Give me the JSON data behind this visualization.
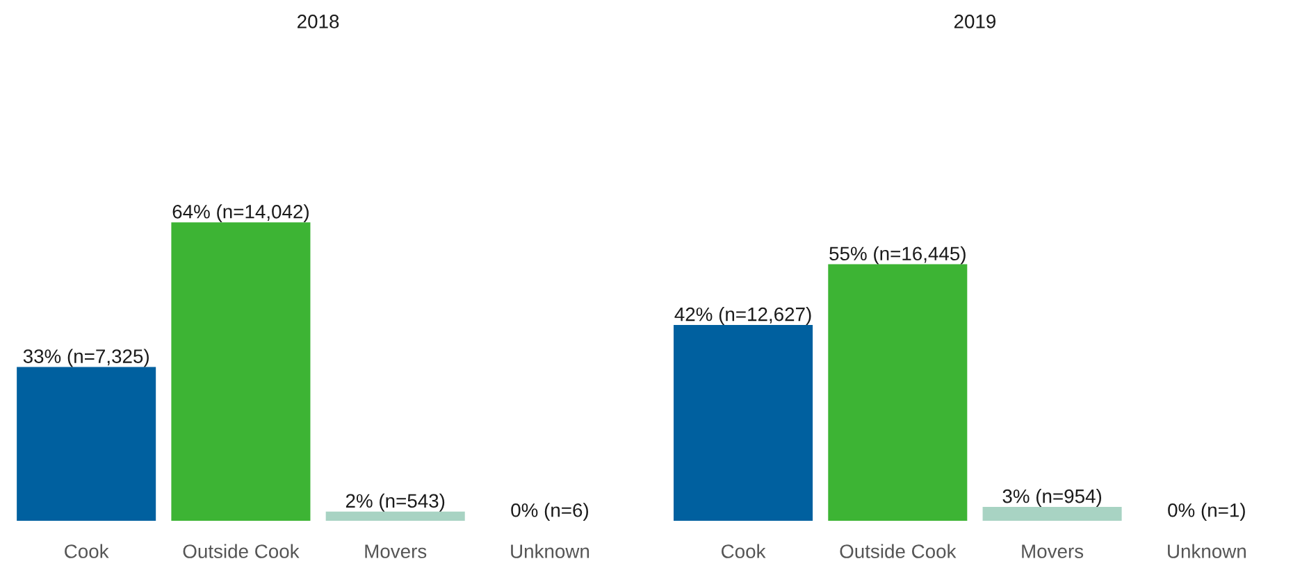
{
  "chart_data": [
    {
      "type": "bar",
      "title": "2018",
      "categories": [
        "Cook",
        "Outside Cook",
        "Movers",
        "Unknown"
      ],
      "values": [
        33,
        64,
        2,
        0
      ],
      "value_labels": [
        "33% (n=7,325)",
        "64% (n=14,042)",
        "2% (n=543)",
        "0% (n=6)"
      ],
      "colors": [
        "#00609f",
        "#3db434",
        "#a8d3c3",
        "#cccccc"
      ],
      "grid": false,
      "legend": false,
      "tick_labels": "x"
    },
    {
      "type": "bar",
      "title": "2019",
      "categories": [
        "Cook",
        "Outside Cook",
        "Movers",
        "Unknown"
      ],
      "values": [
        42,
        55,
        3,
        0
      ],
      "value_labels": [
        "42% (n=12,627)",
        "55% (n=16,445)",
        "3% (n=954)",
        "0% (n=1)"
      ],
      "colors": [
        "#00609f",
        "#3db434",
        "#a8d3c3",
        "#cccccc"
      ],
      "grid": false,
      "legend": false,
      "tick_labels": "x"
    }
  ]
}
